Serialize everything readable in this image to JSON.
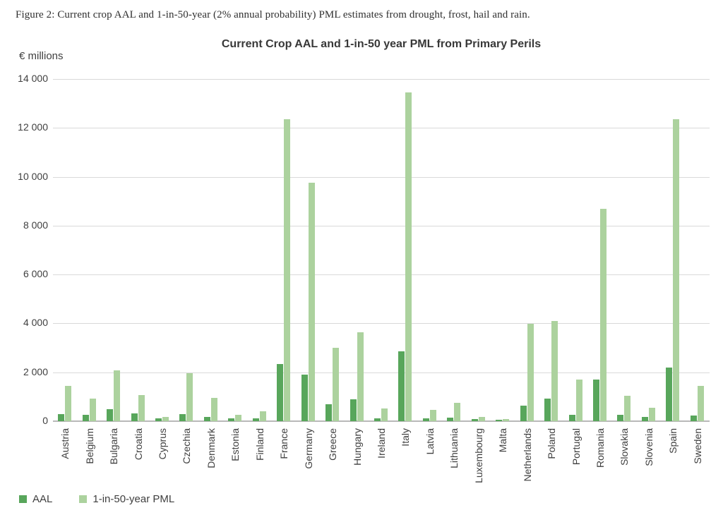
{
  "caption": "Figure 2: Current crop AAL and 1-in-50-year (2% annual probability) PML estimates from drought, frost, hail and rain.",
  "chart_data": {
    "type": "bar",
    "title": "Current Crop AAL and 1-in-50 year PML from Primary Perils",
    "unit_label": "€ millions",
    "categories": [
      "Austria",
      "Belgium",
      "Bulgaria",
      "Croatia",
      "Cyprus",
      "Czechia",
      "Denmark",
      "Estonia",
      "Finland",
      "France",
      "Germany",
      "Greece",
      "Hungary",
      "Ireland",
      "Italy",
      "Latvia",
      "Lithuania",
      "Luxembourg",
      "Malta",
      "Netherlands",
      "Poland",
      "Portugal",
      "Romania",
      "Slovakia",
      "Slovenia",
      "Spain",
      "Sweden"
    ],
    "series": [
      {
        "name": "AAL",
        "color": "#58a65b",
        "values": [
          300,
          250,
          480,
          310,
          110,
          290,
          170,
          110,
          120,
          2350,
          1900,
          700,
          900,
          110,
          2850,
          110,
          140,
          80,
          70,
          630,
          920,
          250,
          1700,
          250,
          170,
          2200,
          230
        ]
      },
      {
        "name": "1-in-50-year PML",
        "color": "#acd29e",
        "values": [
          1430,
          930,
          2070,
          1070,
          170,
          1950,
          960,
          250,
          400,
          12350,
          9750,
          3000,
          3650,
          530,
          13450,
          460,
          760,
          170,
          100,
          3980,
          4090,
          1690,
          8690,
          1040,
          560,
          12350,
          1430
        ]
      }
    ],
    "ylim": [
      0,
      14000
    ],
    "ytick_interval": 2000,
    "ytick_labels": [
      "0",
      "2 000",
      "4 000",
      "6 000",
      "8 000",
      "10 000",
      "12 000",
      "14 000"
    ],
    "grid": true,
    "legend_position": "bottom-left",
    "colors": {
      "gridline": "#d9d9d9",
      "baseline": "#b9b9b9",
      "text": "#3f3f3f",
      "title": "#383838"
    }
  }
}
